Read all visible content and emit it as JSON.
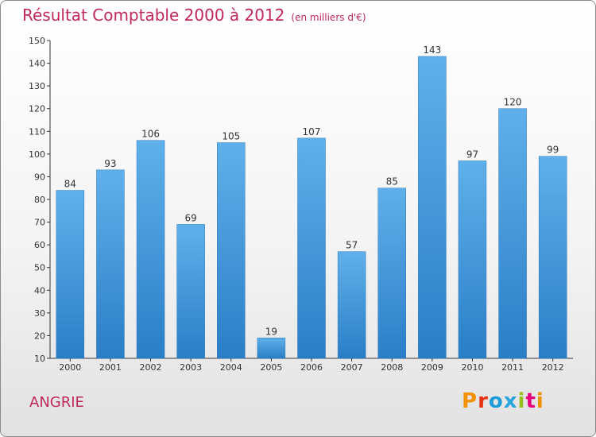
{
  "header": {
    "title": "Résultat Comptable 2000 à 2012",
    "subtitle": "(en milliers d'€)"
  },
  "place": "ANGRIE",
  "brand": {
    "name": "Proxiti",
    "colors": [
      "#f39200",
      "#e63312",
      "#1f9bd7",
      "#2aa5dc",
      "#95c11f",
      "#e6007e",
      "#f39200"
    ]
  },
  "colors": {
    "bar_top": "#5fb0ea",
    "bar_bottom": "#2a7ec6",
    "title": "#c0285a"
  },
  "chart_data": {
    "type": "bar",
    "title": "Résultat Comptable 2000 à 2012",
    "xlabel": "",
    "ylabel": "",
    "categories": [
      "2000",
      "2001",
      "2002",
      "2003",
      "2004",
      "2005",
      "2006",
      "2007",
      "2008",
      "2009",
      "2010",
      "2011",
      "2012"
    ],
    "values": [
      84,
      93,
      106,
      69,
      105,
      19,
      107,
      57,
      85,
      143,
      97,
      120,
      99
    ],
    "ylim": [
      10,
      150
    ],
    "yticks": [
      10,
      20,
      30,
      40,
      50,
      60,
      70,
      80,
      90,
      100,
      110,
      120,
      130,
      140,
      150
    ],
    "grid": false
  }
}
